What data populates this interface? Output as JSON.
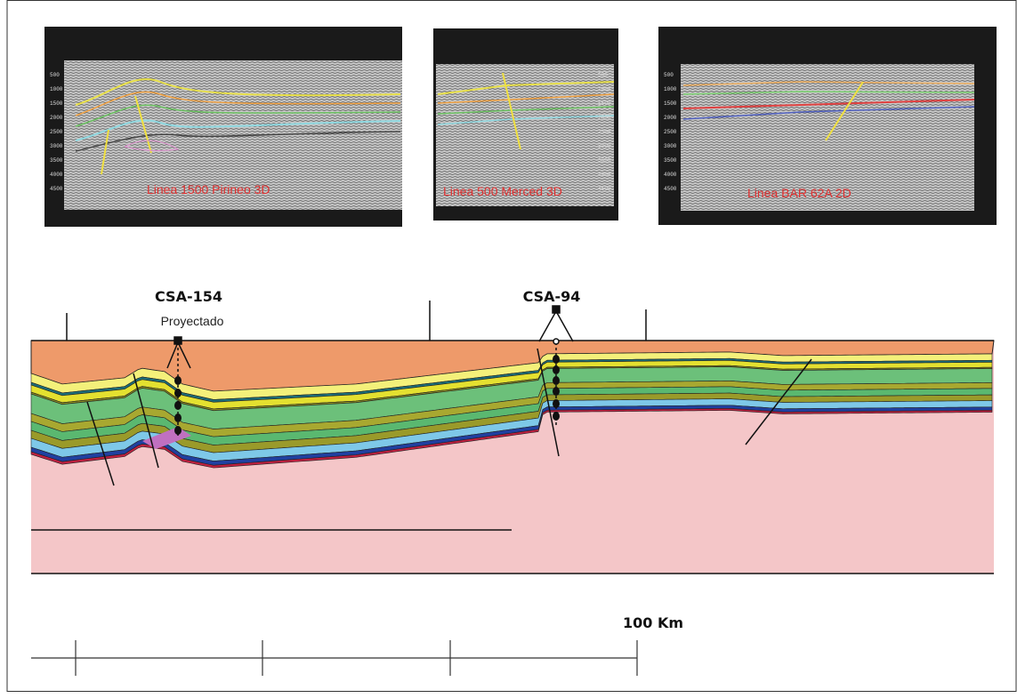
{
  "seismic": [
    {
      "title": "Linea 1500 Pirineo 3D"
    },
    {
      "title": "Linea 500 Merced 3D"
    },
    {
      "title": "Linea BAR 62A   2D"
    }
  ],
  "depth_labels": [
    "500",
    "1000",
    "1500",
    "2000",
    "2500",
    "3000",
    "3500",
    "4000",
    "4500"
  ],
  "wells": [
    {
      "name": "CSA-154",
      "note": "Proyectado"
    },
    {
      "name": "CSA-94"
    }
  ],
  "scale": {
    "label": "100 Km"
  }
}
